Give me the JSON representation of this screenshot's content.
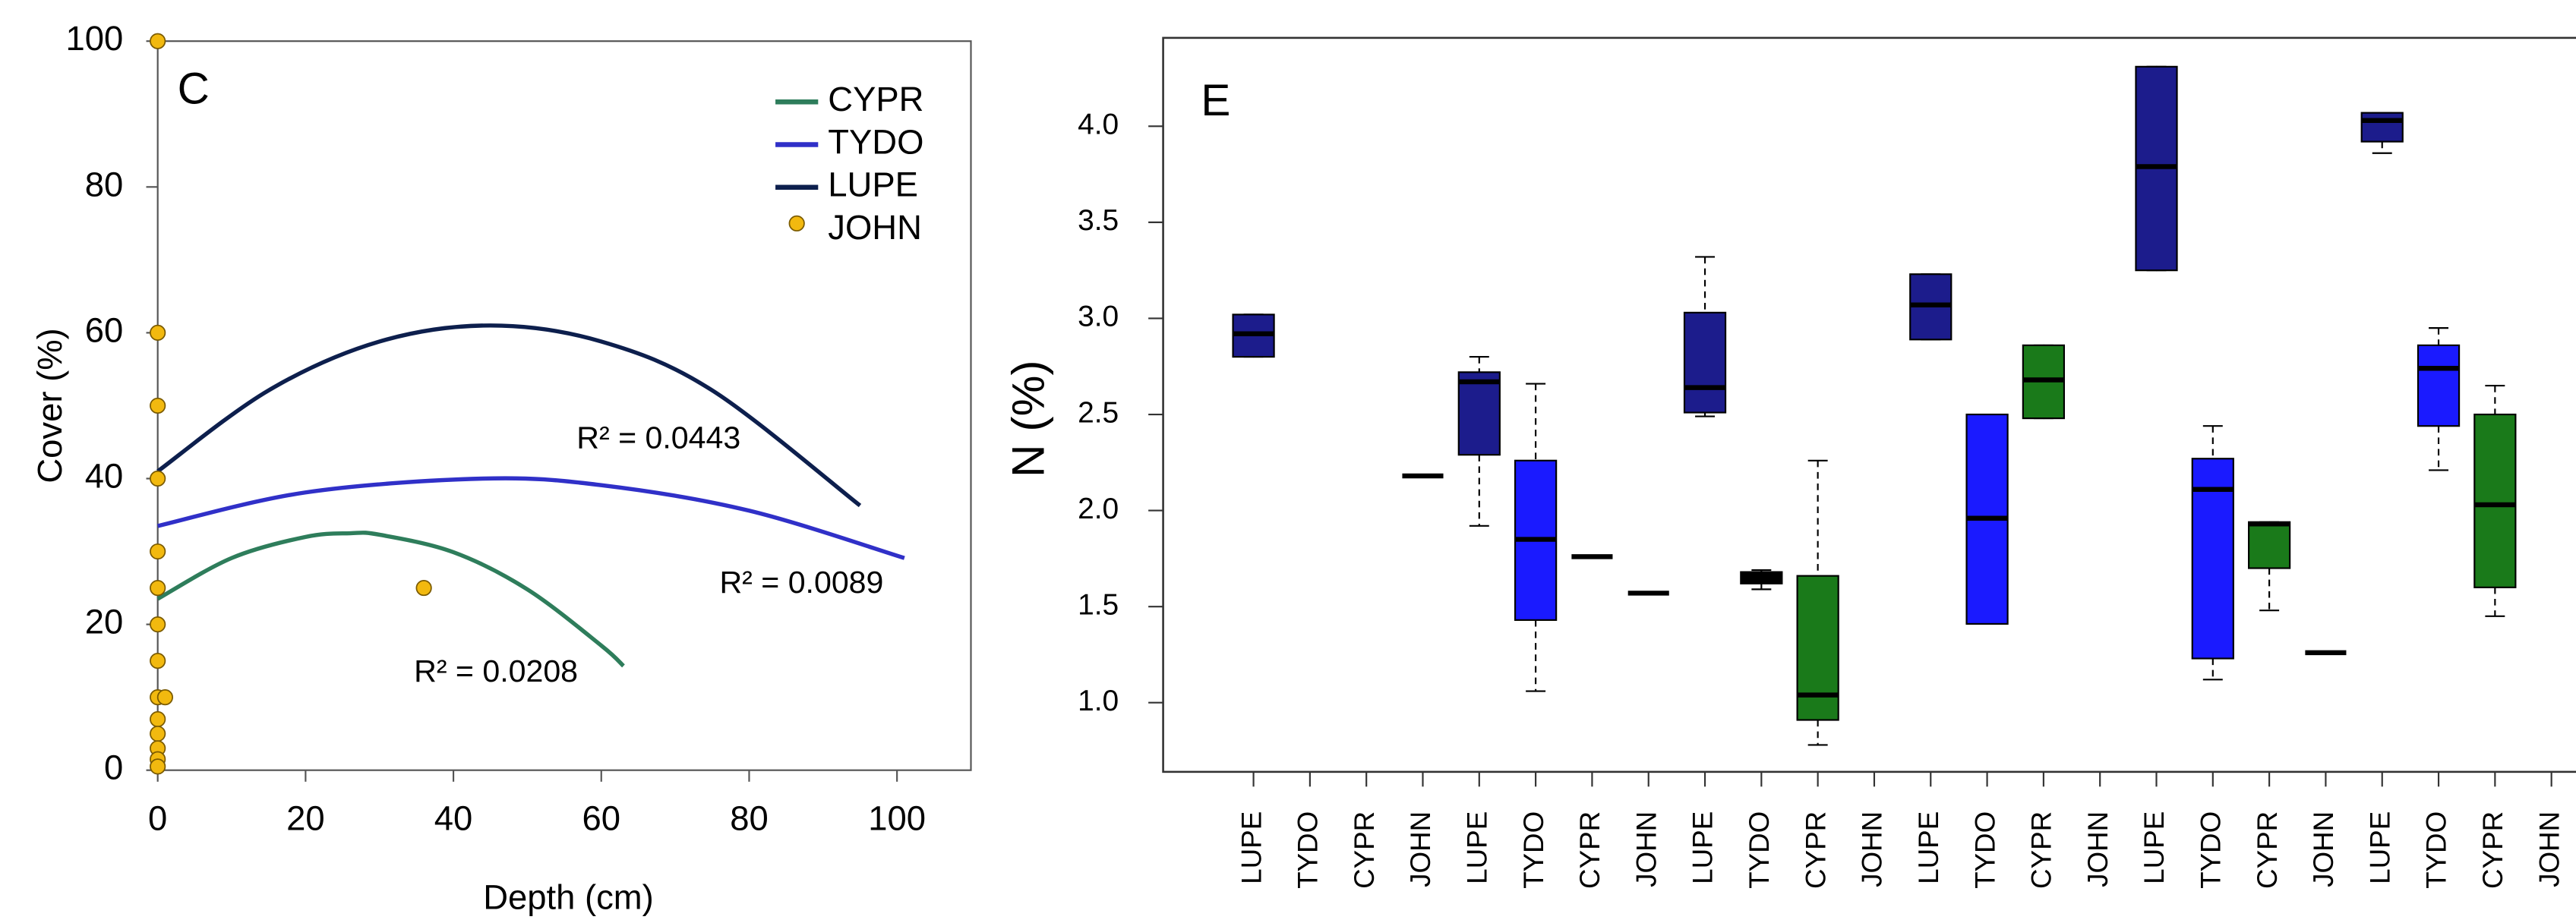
{
  "chart_data": [
    {
      "type": "line",
      "annotations": [
        "C",
        "R² = 0.0443",
        "R² = 0.0089",
        "R² = 0.0208"
      ],
      "xlabel": "Depth (cm)",
      "ylabel": "Cover (%)",
      "xlim": [
        0,
        110
      ],
      "ylim": [
        0,
        100
      ],
      "xticks": [
        0,
        20,
        40,
        60,
        80,
        100
      ],
      "yticks": [
        0,
        20,
        40,
        60,
        80,
        100
      ],
      "legend": "upper right",
      "series": [
        {
          "name": "CYPR",
          "color": "#2e7d5b",
          "x": [
            0,
            10,
            20,
            26,
            30,
            40,
            50,
            60,
            63
          ],
          "values": [
            23.5,
            29.1,
            32.0,
            32.5,
            32.3,
            29.9,
            24.8,
            17.1,
            14.3
          ]
        },
        {
          "name": "TYDO",
          "color": "#3030c8",
          "x": [
            0,
            20,
            44,
            60,
            80,
            101
          ],
          "values": [
            33.5,
            38.1,
            40.0,
            39.1,
            35.6,
            29.1
          ]
        },
        {
          "name": "LUPE",
          "color": "#0d1f4d",
          "x": [
            0,
            15,
            30,
            45,
            60,
            75,
            95
          ],
          "values": [
            41,
            52.1,
            58.8,
            61,
            58.8,
            52.1,
            36.3
          ]
        },
        {
          "name": "JOHN",
          "color": "#f2b90f",
          "marker": true,
          "x": [
            0,
            0,
            0,
            0,
            0,
            0,
            0,
            0,
            0,
            0,
            1,
            0,
            0,
            0,
            0,
            36
          ],
          "values": [
            100,
            60,
            50,
            40,
            30,
            25,
            20,
            15,
            10,
            7,
            10,
            5,
            3,
            1.5,
            0.5,
            25
          ]
        }
      ]
    },
    {
      "type": "box",
      "annotations": [
        "E"
      ],
      "ylabel": "N (%)",
      "ylim": [
        0.64,
        4.46
      ],
      "yticks": [
        {
          "value": 1,
          "label": "1.0"
        },
        1.5,
        {
          "value": 2,
          "label": "2.0"
        },
        2.5,
        {
          "value": 3,
          "label": "3.0"
        },
        3.5,
        {
          "value": 4,
          "label": "4.0"
        }
      ],
      "categories": [
        "LUPE",
        "TYDO",
        "CYPR",
        "JOHN",
        "LUPE",
        "TYDO",
        "CYPR",
        "JOHN",
        "LUPE",
        "TYDO",
        "CYPR",
        "JOHN",
        "LUPE",
        "TYDO",
        "CYPR",
        "JOHN",
        "LUPE",
        "TYDO",
        "CYPR",
        "JOHN",
        "LUPE",
        "TYDO",
        "CYPR",
        "JOHN"
      ],
      "colors": [
        "#1c1c8c",
        null,
        null,
        "#000000",
        "#1c1c8c",
        "#1a1aff",
        "#000000",
        "#000000",
        "#1c1c8c",
        "#000000",
        "#1a7a1a",
        null,
        "#1c1c8c",
        "#1a1aff",
        "#1a7a1a",
        null,
        "#1c1c8c",
        "#1a1aff",
        "#1a7a1a",
        "#000000",
        "#1c1c8c",
        "#1a1aff",
        "#1a7a1a",
        null
      ],
      "stats": [
        [
          2.8,
          2.8,
          2.92,
          3.02,
          3.02
        ],
        null,
        null,
        [
          2.18,
          2.18,
          2.18,
          2.18,
          2.18
        ],
        [
          1.92,
          2.29,
          2.67,
          2.72,
          2.8
        ],
        [
          1.06,
          1.43,
          1.85,
          2.26,
          2.66
        ],
        [
          1.76,
          1.76,
          1.76,
          1.76,
          1.76
        ],
        [
          1.57,
          1.57,
          1.57,
          1.57,
          1.57
        ],
        [
          2.49,
          2.51,
          2.64,
          3.03,
          3.32
        ],
        [
          1.59,
          1.62,
          1.65,
          1.68,
          1.69
        ],
        [
          0.78,
          0.91,
          1.04,
          1.66,
          2.26
        ],
        null,
        [
          2.89,
          2.89,
          3.07,
          3.23,
          3.23
        ],
        [
          1.41,
          1.41,
          1.96,
          2.5,
          2.5
        ],
        [
          2.48,
          2.48,
          2.68,
          2.86,
          2.86
        ],
        null,
        [
          3.25,
          3.25,
          3.79,
          4.31,
          4.31
        ],
        [
          1.12,
          1.23,
          2.11,
          2.27,
          2.44
        ],
        [
          1.48,
          1.7,
          1.93,
          1.94,
          1.94
        ],
        [
          1.26,
          1.26,
          1.26,
          1.26,
          1.26
        ],
        [
          3.86,
          3.92,
          4.03,
          4.07,
          4.07
        ],
        [
          2.21,
          2.44,
          2.74,
          2.86,
          2.95
        ],
        [
          1.45,
          1.6,
          2.03,
          2.5,
          2.65
        ],
        null
      ]
    }
  ]
}
